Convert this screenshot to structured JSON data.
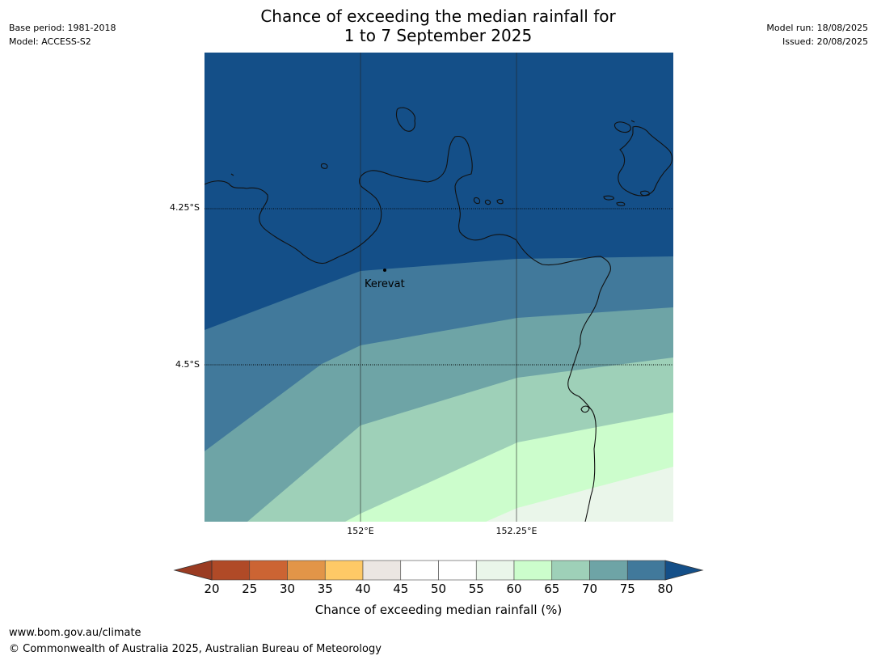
{
  "title_line1": "Chance of exceeding the median rainfall for",
  "title_line2": "1 to 7 September 2025",
  "meta_left": [
    "Base period: 1981-2018",
    "Model: ACCESS-S2"
  ],
  "meta_right": [
    "Model run: 18/08/2025",
    "Issued: 20/08/2025"
  ],
  "map": {
    "lat_labels": [
      "4.25°S",
      "4.5°S"
    ],
    "lon_labels": [
      "152°E",
      "152.25°E"
    ],
    "place": "Kerevat"
  },
  "colorbar": {
    "label": "Chance of exceeding median rainfall (%)",
    "ticks": [
      "20",
      "25",
      "30",
      "35",
      "40",
      "45",
      "50",
      "55",
      "60",
      "65",
      "70",
      "75",
      "80"
    ],
    "colors": [
      "#b04a27",
      "#cc6433",
      "#e29548",
      "#fec966",
      "#ebe6e2",
      "#ffffff",
      "#ffffff",
      "#eaf6ea",
      "#ccfdcc",
      "#9ed0b8",
      "#6ea4a6",
      "#41799b"
    ],
    "under_color": "#9a3b22",
    "over_color": "#144f88"
  },
  "footer": {
    "url": "www.bom.gov.au/climate",
    "copyright": "© Commonwealth of Australia 2025, Australian Bureau of Meteorology"
  }
}
